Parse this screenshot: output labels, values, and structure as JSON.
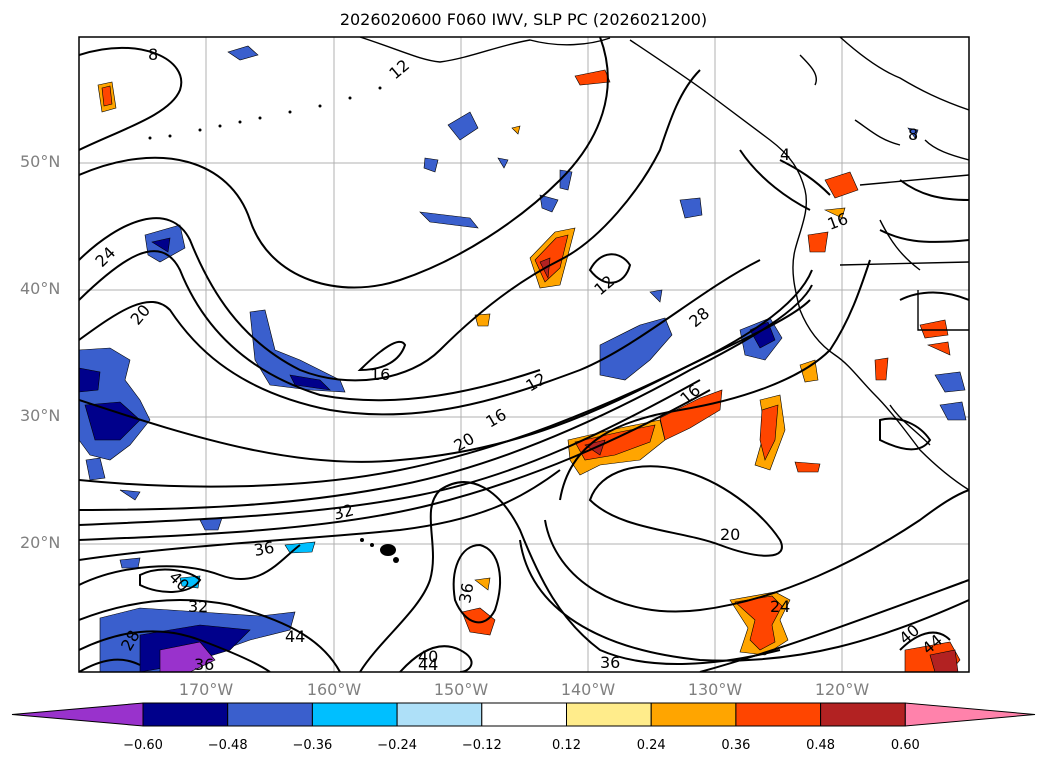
{
  "title": "2026020600 F060 IWV, SLP PC (2026021200)",
  "lat_labels": [
    "50°N",
    "40°N",
    "30°N",
    "20°N"
  ],
  "lon_labels": [
    "170°W",
    "160°W",
    "150°W",
    "140°W",
    "130°W",
    "120°W"
  ],
  "colorbar": {
    "ticks": [
      "−0.60",
      "−0.48",
      "−0.36",
      "−0.24",
      "−0.12",
      "0.12",
      "0.24",
      "0.36",
      "0.48",
      "0.60"
    ],
    "colors": [
      "#9932cc",
      "#00008b",
      "#3a5fcd",
      "#00bfff",
      "#aee0f8",
      "#ffffff",
      "#ffec8b",
      "#ffa500",
      "#ff4500",
      "#b22222",
      "#ff82ab"
    ]
  },
  "contour_labels": [
    "8",
    "12",
    "24",
    "20",
    "16",
    "12",
    "16",
    "20",
    "28",
    "16",
    "12",
    "32",
    "36",
    "40",
    "32",
    "28",
    "44",
    "36",
    "40",
    "44",
    "36",
    "36",
    "24",
    "20",
    "16",
    "8",
    "4",
    "40",
    "44"
  ]
}
